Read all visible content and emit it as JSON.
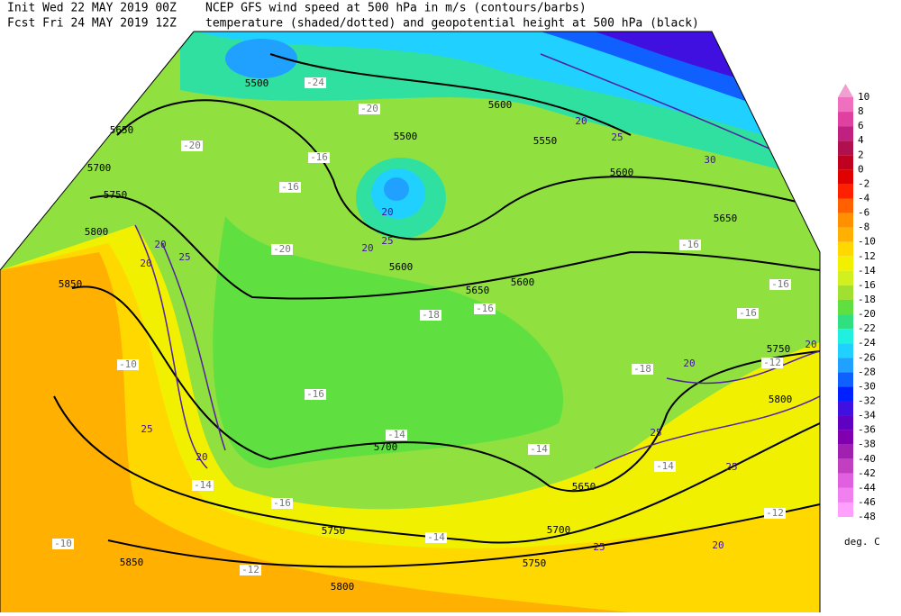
{
  "header": {
    "init": "Init  Wed 22 MAY 2019 00Z",
    "title": "NCEP GFS wind speed at 500 hPa in m/s (contours/barbs)",
    "fcst": "Fcst Fri 24 MAY 2019 12Z",
    "subtitle": "temperature (shaded/dotted) and geopotential height at 500 hPa (black)"
  },
  "colorbar": {
    "levels": [
      10,
      8,
      6,
      4,
      2,
      0,
      -2,
      -4,
      -6,
      -8,
      -10,
      -12,
      -14,
      -16,
      -18,
      -20,
      -22,
      -24,
      -26,
      -28,
      -30,
      -32,
      -34,
      -36,
      -38,
      -40,
      -42,
      -44,
      -46,
      -48
    ],
    "top_color": "#f0a0d0",
    "colors": [
      "#f070c0",
      "#e040a0",
      "#c02080",
      "#b01050",
      "#c00020",
      "#e00000",
      "#ff2000",
      "#ff6000",
      "#ff9000",
      "#ffb000",
      "#ffd800",
      "#f0f000",
      "#d0f020",
      "#a0e030",
      "#60e040",
      "#30e080",
      "#20f0e0",
      "#20d0ff",
      "#20a0ff",
      "#1060ff",
      "#0020ff",
      "#4010e0",
      "#6000c0",
      "#8000b0",
      "#a020b0",
      "#c040c0",
      "#e060e0",
      "#f080f0",
      "#ffa0ff"
    ],
    "unit": "deg. C"
  },
  "map": {
    "height_labels": [
      "5500",
      "5600",
      "5500",
      "5550",
      "5650",
      "5700",
      "5750",
      "5800",
      "5850",
      "5600",
      "5650",
      "5650",
      "5600",
      "5700",
      "5650",
      "5700",
      "5750",
      "5750",
      "5800",
      "5850",
      "5750",
      "5800",
      "5600"
    ],
    "wind_labels": [
      "20",
      "25",
      "20",
      "20",
      "20",
      "25",
      "20",
      "25",
      "30",
      "20",
      "20",
      "25",
      "25",
      "20",
      "25",
      "20",
      "25"
    ],
    "temperature_labels": [
      "-24",
      "-20",
      "-16",
      "-16",
      "-20",
      "-20",
      "-18",
      "-16",
      "-16",
      "-16",
      "-16",
      "-18",
      "-16",
      "-14",
      "-14",
      "-14",
      "-12",
      "-10",
      "-14",
      "-16",
      "-10",
      "-14",
      "-12",
      "-12"
    ]
  }
}
